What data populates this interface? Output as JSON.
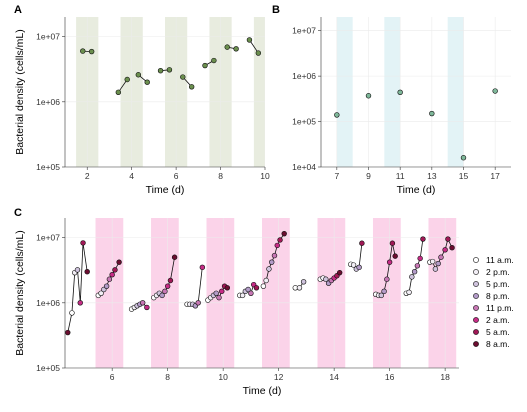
{
  "colors": {
    "a_band": "#e8ecdf",
    "b_band": "#e3f3f6",
    "c_band": "#fbd3e9",
    "a_point": "#6b8f4e",
    "b_point": "#7fb89a",
    "legend_colors": [
      "#ffffff",
      "#f2eef5",
      "#cfc3dd",
      "#b39bc8",
      "#c777b4",
      "#c62c86",
      "#a01856",
      "#6b0d30"
    ]
  },
  "chart_data": [
    {
      "panel": "A",
      "type": "line",
      "xlabel": "Time (d)",
      "ylabel": "Bacterial density (cells/mL)",
      "y_scale": "log",
      "xlim": [
        1,
        10
      ],
      "ylim": [
        100000,
        20000000
      ],
      "xticks": [
        2,
        4,
        6,
        8,
        10
      ],
      "yticks": [
        100000,
        1000000,
        10000000
      ],
      "ytick_labels": [
        "1e+05",
        "1e+06",
        "1e+07"
      ],
      "bands": [
        [
          1.5,
          2.5
        ],
        [
          3.5,
          4.5
        ],
        [
          5.5,
          6.5
        ],
        [
          7.5,
          8.5
        ],
        [
          9.5,
          10.5
        ]
      ],
      "segments": [
        [
          [
            1.8,
            6000000
          ],
          [
            2.2,
            5900000
          ]
        ],
        [
          [
            3.4,
            1400000
          ],
          [
            3.8,
            2200000
          ]
        ],
        [
          [
            4.3,
            2600000
          ],
          [
            4.7,
            2000000
          ]
        ],
        [
          [
            5.3,
            3000000
          ],
          [
            5.7,
            3100000
          ]
        ],
        [
          [
            6.3,
            2400000
          ],
          [
            6.7,
            1700000
          ]
        ],
        [
          [
            7.3,
            3600000
          ],
          [
            7.7,
            4300000
          ]
        ],
        [
          [
            8.3,
            6900000
          ],
          [
            8.7,
            6500000
          ]
        ],
        [
          [
            9.3,
            8900000
          ],
          [
            9.7,
            5600000
          ]
        ]
      ]
    },
    {
      "panel": "B",
      "type": "scatter",
      "xlabel": "Time (d)",
      "ylabel": "",
      "y_scale": "log",
      "xlim": [
        6,
        18
      ],
      "ylim": [
        10000,
        20000000
      ],
      "xticks": [
        7,
        9,
        11,
        13,
        15,
        17
      ],
      "yticks": [
        10000,
        100000,
        1000000,
        10000000
      ],
      "ytick_labels": [
        "1e+04",
        "1e+05",
        "1e+06",
        "1e+07"
      ],
      "bands": [
        [
          7,
          8
        ],
        [
          10,
          11
        ],
        [
          14,
          15
        ]
      ],
      "points": [
        [
          7,
          140000
        ],
        [
          9,
          370000
        ],
        [
          11,
          440000
        ],
        [
          13,
          150000
        ],
        [
          15,
          16000
        ],
        [
          17,
          470000
        ]
      ]
    },
    {
      "panel": "C",
      "type": "line",
      "xlabel": "Time (d)",
      "ylabel": "Bacterial density (cells/mL)",
      "y_scale": "log",
      "xlim": [
        4.3,
        18.5
      ],
      "ylim": [
        100000,
        20000000
      ],
      "xticks": [
        6,
        8,
        10,
        12,
        14,
        16,
        18
      ],
      "yticks": [
        100000,
        1000000,
        10000000
      ],
      "ytick_labels": [
        "1e+05",
        "1e+06",
        "1e+07"
      ],
      "bands": [
        [
          5.4,
          6.4
        ],
        [
          7.4,
          8.4
        ],
        [
          9.4,
          10.4
        ],
        [
          11.4,
          12.4
        ],
        [
          13.4,
          14.4
        ],
        [
          15.4,
          16.4
        ],
        [
          17.4,
          18.4
        ]
      ],
      "legend": [
        "11 a.m.",
        "2 p.m.",
        "5 p.m.",
        "8 p.m.",
        "11 p.m.",
        "2 a.m.",
        "5 a.m.",
        "8 a.m."
      ],
      "segments": [
        [
          [
            4.4,
            350000,
            7
          ],
          [
            4.55,
            700000,
            0
          ],
          [
            4.65,
            2900000,
            1
          ],
          [
            4.75,
            3200000,
            2
          ],
          [
            4.85,
            1000000,
            5
          ],
          [
            4.95,
            8300000,
            6
          ],
          [
            5.1,
            3000000,
            7
          ]
        ],
        [
          [
            5.5,
            1300000,
            0
          ],
          [
            5.6,
            1400000,
            1
          ],
          [
            5.7,
            1600000,
            2
          ],
          [
            5.8,
            1800000,
            3
          ],
          [
            5.9,
            2300000,
            4
          ],
          [
            6.0,
            2700000,
            5
          ],
          [
            6.1,
            3200000,
            6
          ],
          [
            6.25,
            4200000,
            7
          ]
        ],
        [
          [
            6.7,
            800000,
            0
          ],
          [
            6.8,
            850000,
            1
          ],
          [
            6.9,
            900000,
            2
          ],
          [
            7.0,
            950000,
            3
          ],
          [
            7.1,
            1000000,
            4
          ],
          [
            7.25,
            850000,
            5
          ]
        ],
        [
          [
            7.5,
            1200000,
            0
          ],
          [
            7.6,
            1300000,
            1
          ],
          [
            7.7,
            1400000,
            2
          ],
          [
            7.8,
            1300000,
            3
          ],
          [
            7.9,
            1500000,
            4
          ],
          [
            8.0,
            1800000,
            5
          ],
          [
            8.1,
            2200000,
            6
          ],
          [
            8.25,
            5000000,
            7
          ]
        ],
        [
          [
            8.7,
            950000,
            0
          ],
          [
            8.8,
            950000,
            1
          ],
          [
            8.9,
            950000,
            2
          ],
          [
            9.0,
            900000,
            3
          ],
          [
            9.1,
            1000000,
            4
          ],
          [
            9.25,
            3500000,
            5
          ]
        ],
        [
          [
            9.45,
            1100000,
            0
          ],
          [
            9.55,
            1200000,
            1
          ],
          [
            9.65,
            1300000,
            2
          ],
          [
            9.75,
            1400000,
            3
          ],
          [
            9.85,
            1200000,
            4
          ],
          [
            9.95,
            1500000,
            5
          ],
          [
            10.05,
            1800000,
            6
          ],
          [
            10.15,
            1700000,
            7
          ]
        ],
        [
          [
            10.6,
            1300000,
            0
          ],
          [
            10.7,
            1300000,
            1
          ],
          [
            10.8,
            1500000,
            2
          ],
          [
            10.9,
            1600000,
            3
          ],
          [
            11.0,
            1400000,
            4
          ],
          [
            11.1,
            1900000,
            5
          ],
          [
            11.2,
            1700000,
            6
          ]
        ],
        [
          [
            11.45,
            1800000,
            0
          ],
          [
            11.55,
            2200000,
            1
          ],
          [
            11.65,
            3300000,
            2
          ],
          [
            11.75,
            4200000,
            3
          ],
          [
            11.85,
            5300000,
            4
          ],
          [
            11.95,
            7600000,
            5
          ],
          [
            12.05,
            9200000,
            6
          ],
          [
            12.2,
            11500000,
            7
          ]
        ],
        [
          [
            12.6,
            1700000,
            0
          ],
          [
            12.75,
            1700000,
            1
          ],
          [
            12.9,
            2100000,
            2
          ]
        ],
        [
          [
            13.5,
            2300000,
            0
          ],
          [
            13.6,
            2400000,
            1
          ],
          [
            13.7,
            2300000,
            2
          ],
          [
            13.8,
            2000000,
            3
          ],
          [
            13.9,
            2200000,
            4
          ],
          [
            14.0,
            2400000,
            5
          ],
          [
            14.1,
            2600000,
            6
          ],
          [
            14.2,
            2900000,
            7
          ]
        ],
        [
          [
            14.6,
            3900000,
            0
          ],
          [
            14.7,
            3800000,
            1
          ],
          [
            14.8,
            3300000,
            2
          ],
          [
            14.9,
            3500000,
            3
          ],
          [
            15.0,
            8200000,
            6
          ]
        ],
        [
          [
            15.5,
            1350000,
            0
          ],
          [
            15.6,
            1300000,
            1
          ],
          [
            15.7,
            1300000,
            2
          ],
          [
            15.8,
            1500000,
            3
          ],
          [
            15.9,
            2300000,
            4
          ],
          [
            16.0,
            4200000,
            5
          ],
          [
            16.1,
            8200000,
            6
          ],
          [
            16.2,
            5200000,
            7
          ]
        ],
        [
          [
            16.6,
            1400000,
            0
          ],
          [
            16.7,
            1450000,
            1
          ],
          [
            16.8,
            2500000,
            2
          ],
          [
            16.9,
            3000000,
            3
          ],
          [
            17.0,
            3700000,
            4
          ],
          [
            17.1,
            4800000,
            5
          ],
          [
            17.2,
            9500000,
            6
          ]
        ],
        [
          [
            17.45,
            4200000,
            0
          ],
          [
            17.55,
            4300000,
            1
          ],
          [
            17.65,
            3300000,
            2
          ],
          [
            17.75,
            4000000,
            3
          ],
          [
            17.85,
            5000000,
            4
          ],
          [
            18.0,
            6500000,
            5
          ],
          [
            18.1,
            9500000,
            6
          ],
          [
            18.25,
            7000000,
            7
          ]
        ]
      ]
    }
  ]
}
